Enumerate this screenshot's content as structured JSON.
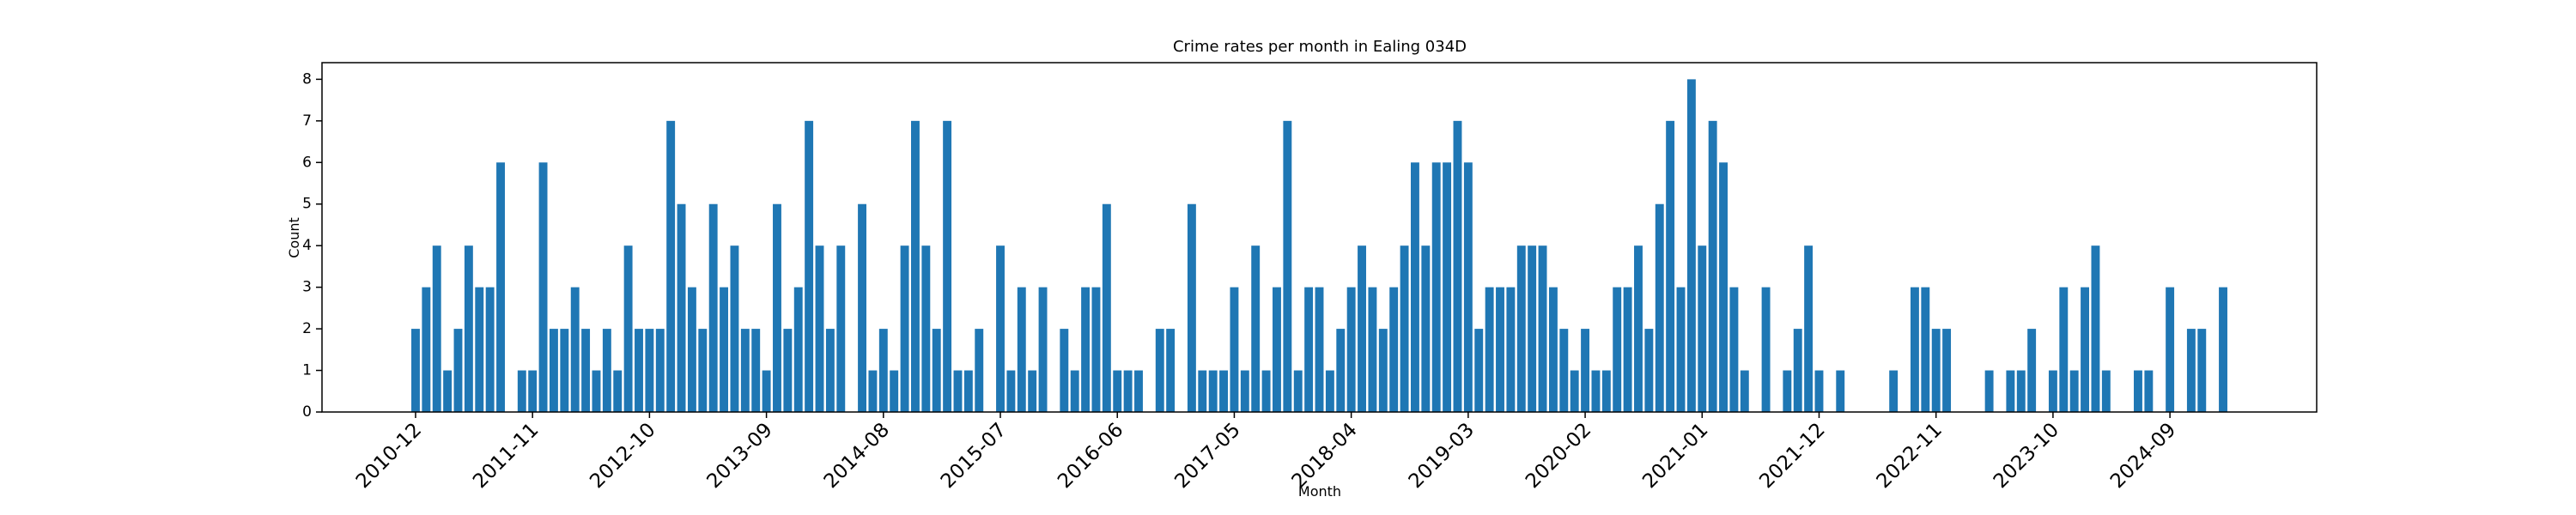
{
  "chart_data": {
    "type": "bar",
    "title": "Crime rates per month in Ealing 034D",
    "x_label": "Month",
    "y_label": "Count",
    "color": "#1f77b4",
    "categories": [
      "2010-12",
      null,
      null,
      null,
      null,
      null,
      null,
      null,
      null,
      null,
      null,
      "2011-11",
      null,
      null,
      null,
      null,
      null,
      null,
      null,
      null,
      null,
      null,
      "2012-10",
      null,
      null,
      null,
      null,
      null,
      null,
      null,
      null,
      null,
      null,
      "2013-09",
      null,
      null,
      null,
      null,
      null,
      null,
      null,
      null,
      null,
      null,
      "2014-08",
      null,
      null,
      null,
      null,
      null,
      null,
      null,
      null,
      null,
      null,
      "2015-07",
      null,
      null,
      null,
      null,
      null,
      null,
      null,
      null,
      null,
      null,
      "2016-06",
      null,
      null,
      null,
      null,
      null,
      null,
      null,
      null,
      null,
      null,
      "2017-05",
      null,
      null,
      null,
      null,
      null,
      null,
      null,
      null,
      null,
      null,
      "2018-04",
      null,
      null,
      null,
      null,
      null,
      null,
      null,
      null,
      null,
      null,
      "2019-03",
      null,
      null,
      null,
      null,
      null,
      null,
      null,
      null,
      null,
      null,
      "2020-02",
      null,
      null,
      null,
      null,
      null,
      null,
      null,
      null,
      null,
      null,
      "2021-01",
      null,
      null,
      null,
      null,
      null,
      null,
      null,
      null,
      null,
      null,
      "2021-12",
      null,
      null,
      null,
      null,
      null,
      null,
      null,
      null,
      null,
      null,
      "2022-11",
      null,
      null,
      null,
      null,
      null,
      null,
      null,
      null,
      null,
      null,
      "2023-10",
      null,
      null,
      null,
      null,
      null,
      null,
      null,
      null,
      null,
      null,
      "2024-09",
      null,
      null,
      null,
      null,
      null
    ],
    "values": [
      2,
      3,
      4,
      1,
      2,
      4,
      3,
      3,
      6,
      0,
      1,
      1,
      6,
      2,
      2,
      3,
      2,
      1,
      2,
      1,
      4,
      2,
      2,
      2,
      7,
      5,
      3,
      2,
      5,
      3,
      4,
      2,
      2,
      1,
      5,
      2,
      3,
      7,
      4,
      2,
      4,
      0,
      5,
      1,
      2,
      1,
      4,
      7,
      4,
      2,
      7,
      1,
      1,
      2,
      0,
      4,
      1,
      3,
      1,
      3,
      0,
      2,
      1,
      3,
      3,
      5,
      1,
      1,
      1,
      0,
      2,
      2,
      0,
      5,
      1,
      1,
      1,
      3,
      1,
      4,
      1,
      3,
      7,
      1,
      3,
      3,
      1,
      2,
      3,
      4,
      3,
      2,
      3,
      4,
      6,
      4,
      6,
      6,
      7,
      6,
      2,
      3,
      3,
      3,
      4,
      4,
      4,
      3,
      2,
      1,
      2,
      1,
      1,
      3,
      3,
      4,
      2,
      5,
      7,
      3,
      8,
      4,
      7,
      6,
      3,
      1,
      0,
      3,
      0,
      1,
      2,
      4,
      1,
      0,
      1,
      0,
      0,
      0,
      0,
      1,
      0,
      3,
      3,
      2,
      2,
      0,
      0,
      0,
      1,
      0,
      1,
      1,
      2,
      0,
      1,
      3,
      1,
      3,
      4,
      1,
      0,
      0,
      1,
      1,
      0,
      3,
      0,
      2,
      2,
      0,
      3
    ],
    "ylim": [
      0,
      8.4
    ],
    "yticks": [
      0,
      1,
      2,
      3,
      4,
      5,
      6,
      7,
      8
    ]
  }
}
